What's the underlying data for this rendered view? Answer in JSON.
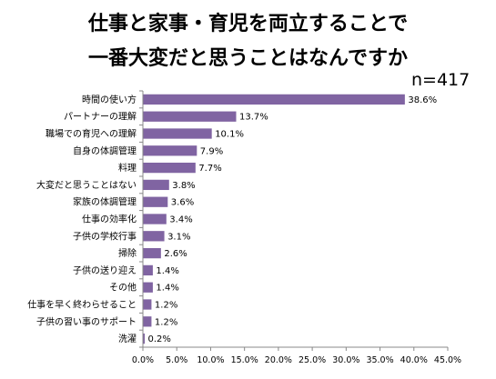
{
  "title_line1": "仕事と家事・育児を両立することで",
  "title_line2": "一番大変だと思うことはなんですか",
  "sample_note": "n=417",
  "chart_data": {
    "type": "bar",
    "orientation": "horizontal",
    "categories": [
      "時間の使い方",
      "パートナーの理解",
      "職場での育児への理解",
      "自身の体調管理",
      "料理",
      "大変だと思うことはない",
      "家族の体調管理",
      "仕事の効率化",
      "子供の学校行事",
      "掃除",
      "子供の送り迎え",
      "その他",
      "仕事を早く終わらせること",
      "子供の習い事のサポート",
      "洗濯"
    ],
    "values": [
      38.6,
      13.7,
      10.1,
      7.9,
      7.7,
      3.8,
      3.6,
      3.4,
      3.1,
      2.6,
      1.4,
      1.4,
      1.2,
      1.2,
      0.2
    ],
    "value_labels": [
      "38.6%",
      "13.7%",
      "10.1%",
      "7.9%",
      "7.7%",
      "3.8%",
      "3.6%",
      "3.4%",
      "3.1%",
      "2.6%",
      "1.4%",
      "1.4%",
      "1.2%",
      "1.2%",
      "0.2%"
    ],
    "xticks": [
      "0.0%",
      "5.0%",
      "10.0%",
      "15.0%",
      "20.0%",
      "25.0%",
      "30.0%",
      "35.0%",
      "40.0%",
      "45.0%"
    ],
    "xlim": [
      0,
      45
    ],
    "bar_color": "#8064A2",
    "grid": false,
    "legend": "none"
  }
}
